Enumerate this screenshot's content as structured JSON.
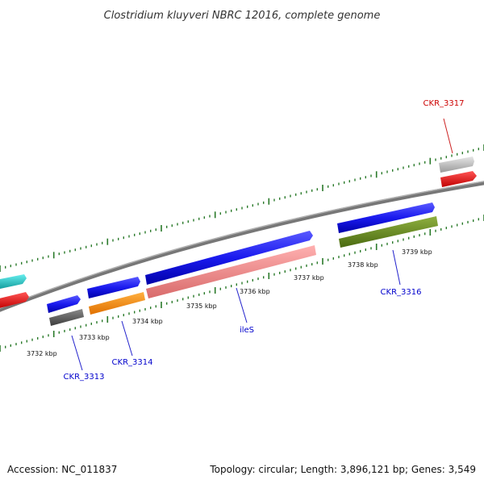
{
  "title": "Clostridium kluyveri NBRC 12016, complete genome",
  "footer": {
    "accession": "Accession: NC_011837",
    "summary": "Topology: circular; Length: 3,896,121 bp; Genes: 3,549"
  },
  "ticks": [
    "3732 kbp",
    "3733 kbp",
    "3734 kbp",
    "3735 kbp",
    "3736 kbp",
    "3737 kbp",
    "3738 kbp",
    "3739 kbp"
  ],
  "gene_labels": [
    {
      "text": "CKR_3313",
      "color": "#0000cc"
    },
    {
      "text": "CKR_3314",
      "color": "#0000cc"
    },
    {
      "text": "ileS",
      "color": "#0000cc"
    },
    {
      "text": "CKR_3316",
      "color": "#0000cc"
    },
    {
      "text": "CKR_3317",
      "color": "#cc0000"
    }
  ],
  "colors": {
    "backbone": "#888888",
    "tick_green": "#2a7a2a",
    "gene_blue": "#1a1aee",
    "gene_orange": "#ff8c00",
    "gene_pink": "#f08a8a",
    "gene_olive": "#6b8e23",
    "gene_gray_dark": "#5f5f5f",
    "gene_gray_light": "#c8c8c8",
    "gene_cyan": "#22cccc",
    "gene_red": "#ee1111"
  }
}
